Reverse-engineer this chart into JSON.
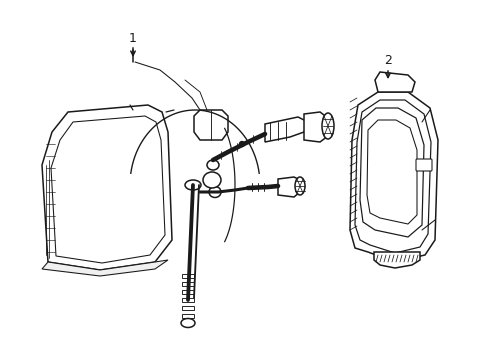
{
  "background_color": "#ffffff",
  "line_color": "#1a1a1a",
  "line_width": 1.1,
  "label_1": "1",
  "label_2": "2",
  "label_fontsize": 9,
  "fig_width": 4.89,
  "fig_height": 3.6,
  "dpi": 100
}
